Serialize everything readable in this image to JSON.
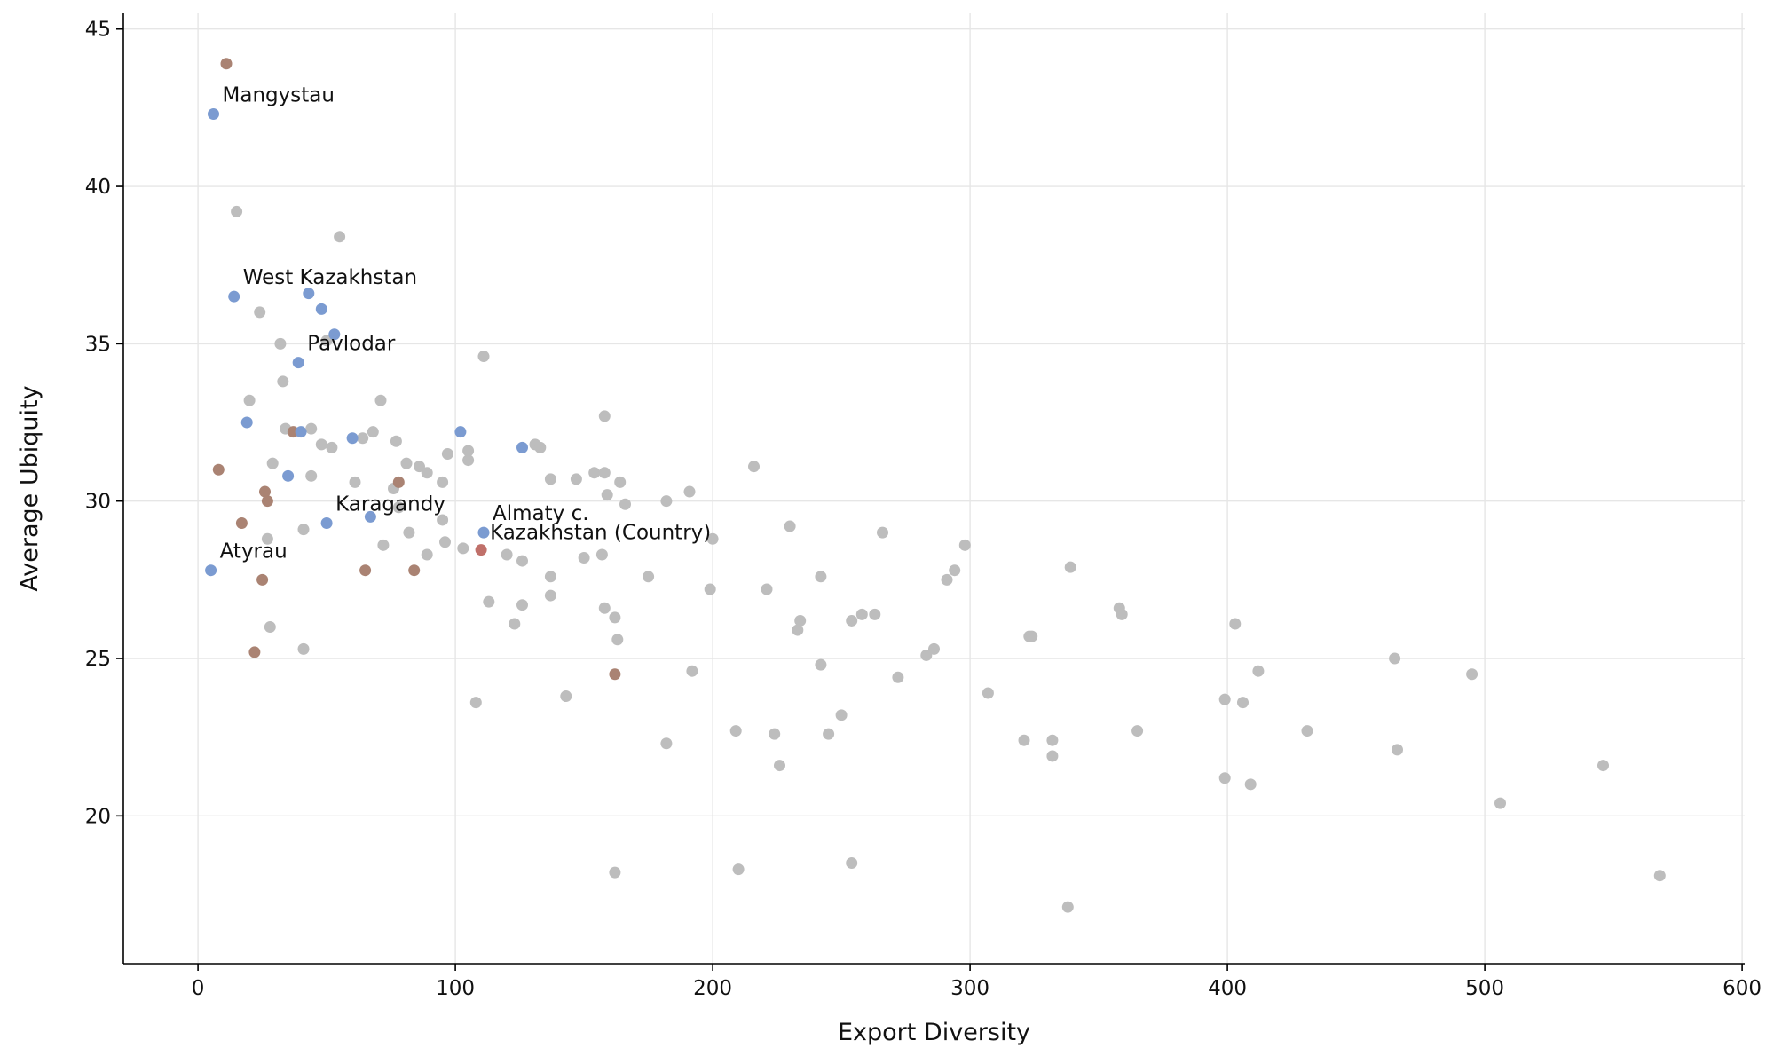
{
  "chart_data": {
    "type": "scatter",
    "xlabel": "Export Diversity",
    "ylabel": "Average Ubiquity",
    "xlim": [
      -29,
      601
    ],
    "ylim": [
      15.3,
      45.5
    ],
    "xticks": [
      0,
      100,
      200,
      300,
      400,
      500,
      600
    ],
    "yticks": [
      20,
      25,
      30,
      35,
      40,
      45
    ],
    "grid": true,
    "legend": "none",
    "colors": {
      "other": "#bdbdbd",
      "highlight_blue": "#7b9bd1",
      "highlight_brown": "#aa8373",
      "country": "#c0706a"
    },
    "labels": [
      {
        "text": "Mangystau",
        "x": 6,
        "y": 42.3
      },
      {
        "text": "West Kazakhstan",
        "x": 14,
        "y": 36.5
      },
      {
        "text": "Pavlodar",
        "x": 39,
        "y": 34.4
      },
      {
        "text": "Karagandy",
        "x": 50,
        "y": 29.3
      },
      {
        "text": "Almaty c.",
        "x": 111,
        "y": 29.0
      },
      {
        "text": "Kazakhstan (Country)",
        "x": 110,
        "y": 28.4
      },
      {
        "text": "Atyrau",
        "x": 5,
        "y": 27.8
      }
    ],
    "series": [
      {
        "group": "country",
        "points": [
          [
            110,
            28.45
          ]
        ]
      },
      {
        "group": "highlight_blue",
        "points": [
          [
            6,
            42.3
          ],
          [
            14,
            36.5
          ],
          [
            43,
            36.6
          ],
          [
            48,
            36.1
          ],
          [
            53,
            35.3
          ],
          [
            39,
            34.4
          ],
          [
            19,
            32.5
          ],
          [
            40,
            32.2
          ],
          [
            60,
            32.0
          ],
          [
            102,
            32.2
          ],
          [
            126,
            31.7
          ],
          [
            35,
            30.8
          ],
          [
            50,
            29.3
          ],
          [
            67,
            29.5
          ],
          [
            111,
            29.0
          ],
          [
            5,
            27.8
          ]
        ]
      },
      {
        "group": "highlight_brown",
        "points": [
          [
            11,
            43.9
          ],
          [
            37,
            32.2
          ],
          [
            8,
            31.0
          ],
          [
            26,
            30.3
          ],
          [
            27,
            30.0
          ],
          [
            17,
            29.3
          ],
          [
            78,
            30.6
          ],
          [
            65,
            27.8
          ],
          [
            84,
            27.8
          ],
          [
            25,
            27.5
          ],
          [
            22,
            25.2
          ],
          [
            162,
            24.5
          ]
        ]
      },
      {
        "group": "other",
        "points": [
          [
            15,
            39.2
          ],
          [
            55,
            38.4
          ],
          [
            24,
            36.0
          ],
          [
            32,
            35.0
          ],
          [
            50,
            35.1
          ],
          [
            111,
            34.6
          ],
          [
            33,
            33.8
          ],
          [
            20,
            33.2
          ],
          [
            71,
            33.2
          ],
          [
            158,
            32.7
          ],
          [
            34,
            32.3
          ],
          [
            44,
            32.3
          ],
          [
            68,
            32.2
          ],
          [
            48,
            31.8
          ],
          [
            52,
            31.7
          ],
          [
            64,
            32.0
          ],
          [
            77,
            31.9
          ],
          [
            131,
            31.8
          ],
          [
            133,
            31.7
          ],
          [
            97,
            31.5
          ],
          [
            105,
            31.6
          ],
          [
            105,
            31.3
          ],
          [
            29,
            31.2
          ],
          [
            81,
            31.2
          ],
          [
            86,
            31.1
          ],
          [
            89,
            30.9
          ],
          [
            154,
            30.9
          ],
          [
            158,
            30.9
          ],
          [
            216,
            31.1
          ],
          [
            44,
            30.8
          ],
          [
            95,
            30.6
          ],
          [
            61,
            30.6
          ],
          [
            137,
            30.7
          ],
          [
            147,
            30.7
          ],
          [
            164,
            30.6
          ],
          [
            76,
            30.4
          ],
          [
            159,
            30.2
          ],
          [
            191,
            30.3
          ],
          [
            182,
            30.0
          ],
          [
            166,
            29.9
          ],
          [
            41,
            29.1
          ],
          [
            78,
            29.8
          ],
          [
            95,
            29.4
          ],
          [
            230,
            29.2
          ],
          [
            266,
            29.0
          ],
          [
            82,
            29.0
          ],
          [
            27,
            28.8
          ],
          [
            200,
            28.8
          ],
          [
            72,
            28.6
          ],
          [
            96,
            28.7
          ],
          [
            103,
            28.5
          ],
          [
            298,
            28.6
          ],
          [
            89,
            28.3
          ],
          [
            120,
            28.3
          ],
          [
            126,
            28.1
          ],
          [
            150,
            28.2
          ],
          [
            157,
            28.3
          ],
          [
            339,
            27.9
          ],
          [
            294,
            27.8
          ],
          [
            137,
            27.6
          ],
          [
            175,
            27.6
          ],
          [
            242,
            27.6
          ],
          [
            291,
            27.5
          ],
          [
            199,
            27.2
          ],
          [
            221,
            27.2
          ],
          [
            137,
            27.0
          ],
          [
            113,
            26.8
          ],
          [
            126,
            26.7
          ],
          [
            158,
            26.6
          ],
          [
            358,
            26.6
          ],
          [
            359,
            26.4
          ],
          [
            258,
            26.4
          ],
          [
            263,
            26.4
          ],
          [
            254,
            26.2
          ],
          [
            234,
            26.2
          ],
          [
            162,
            26.3
          ],
          [
            123,
            26.1
          ],
          [
            403,
            26.1
          ],
          [
            28,
            26.0
          ],
          [
            233,
            25.9
          ],
          [
            323,
            25.7
          ],
          [
            324,
            25.7
          ],
          [
            163,
            25.6
          ],
          [
            41,
            25.3
          ],
          [
            286,
            25.3
          ],
          [
            283,
            25.1
          ],
          [
            465,
            25.0
          ],
          [
            242,
            24.8
          ],
          [
            192,
            24.6
          ],
          [
            412,
            24.6
          ],
          [
            495,
            24.5
          ],
          [
            272,
            24.4
          ],
          [
            307,
            23.9
          ],
          [
            143,
            23.8
          ],
          [
            399,
            23.7
          ],
          [
            406,
            23.6
          ],
          [
            108,
            23.6
          ],
          [
            250,
            23.2
          ],
          [
            431,
            22.7
          ],
          [
            365,
            22.7
          ],
          [
            209,
            22.7
          ],
          [
            224,
            22.6
          ],
          [
            245,
            22.6
          ],
          [
            321,
            22.4
          ],
          [
            332,
            22.4
          ],
          [
            182,
            22.3
          ],
          [
            466,
            22.1
          ],
          [
            332,
            21.9
          ],
          [
            226,
            21.6
          ],
          [
            546,
            21.6
          ],
          [
            399,
            21.2
          ],
          [
            409,
            21.0
          ],
          [
            506,
            20.4
          ],
          [
            254,
            18.5
          ],
          [
            210,
            18.3
          ],
          [
            162,
            18.2
          ],
          [
            568,
            18.1
          ],
          [
            338,
            17.1
          ]
        ]
      }
    ]
  }
}
